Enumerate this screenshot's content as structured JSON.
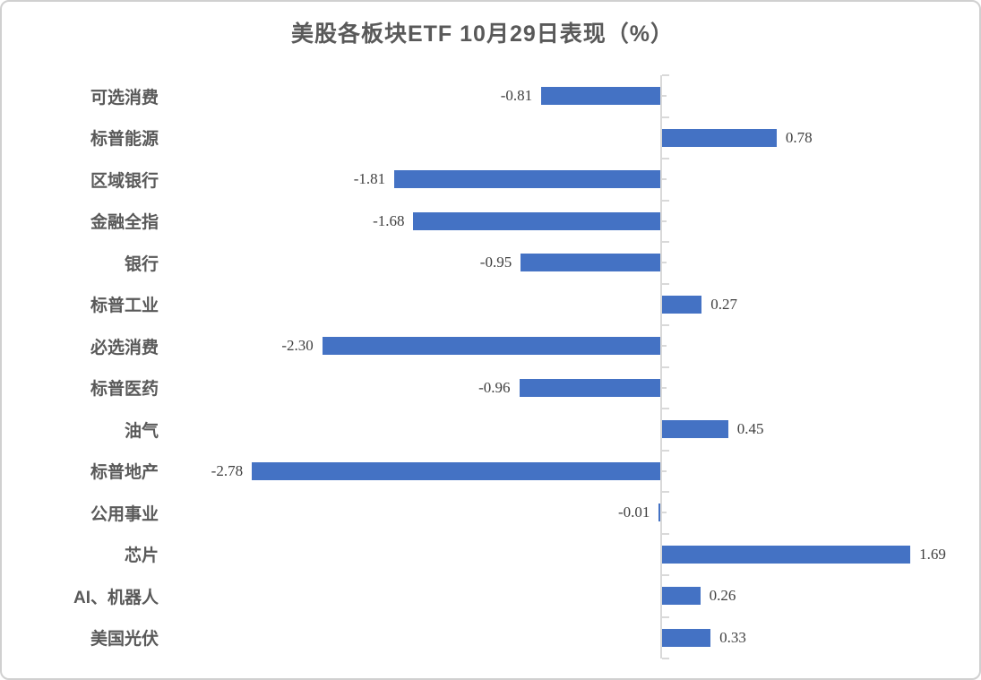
{
  "chart_data": {
    "type": "bar",
    "orientation": "horizontal",
    "title": "美股各板块ETF 10月29日表现（%）",
    "xlabel": "",
    "ylabel": "",
    "categories": [
      "可选消费",
      "标普能源",
      "区域银行",
      "金融全指",
      "银行",
      "标普工业",
      "必选消费",
      "标普医药",
      "油气",
      "标普地产",
      "公用事业",
      "芯片",
      "AI、机器人",
      "美国光伏"
    ],
    "values": [
      -0.81,
      0.78,
      -1.81,
      -1.68,
      -0.95,
      0.27,
      -2.3,
      -0.96,
      0.45,
      -2.78,
      -0.01,
      1.69,
      0.26,
      0.33
    ],
    "value_labels": [
      "-0.81",
      "0.78",
      "-1.81",
      "-1.68",
      "-0.95",
      "0.27",
      "-2.30",
      "-0.96",
      "0.45",
      "-2.78",
      "-0.01",
      "1.69",
      "0.26",
      "0.33"
    ],
    "xlim": [
      -3.2,
      2.2
    ],
    "grid": false,
    "legend": "none",
    "unit": "%",
    "colors": {
      "bar": "#4472c4",
      "axis": "#d9d9d9",
      "category_text": "#595959",
      "value_text": "#404040",
      "title_text": "#595959",
      "card_border": "#d0d0d0"
    }
  }
}
